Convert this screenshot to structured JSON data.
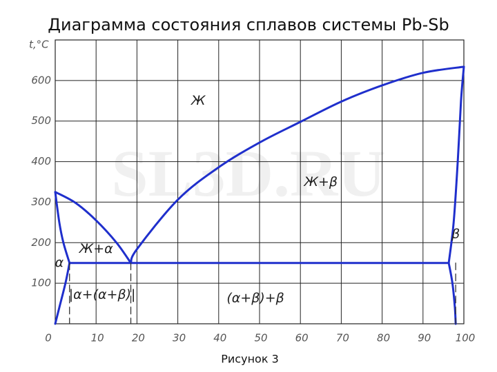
{
  "chart_data": {
    "type": "line",
    "title": "Диаграмма состояния сплавов системы Pb-Sb",
    "caption": "Рисунок 3",
    "watermark": "SL3D.RU",
    "ylabel": "t,°C",
    "xlim": [
      0,
      100
    ],
    "ylim": [
      0,
      700
    ],
    "xticks": [
      0,
      10,
      20,
      30,
      40,
      50,
      60,
      70,
      80,
      90,
      100
    ],
    "yticks": [
      100,
      200,
      300,
      400,
      500,
      600
    ],
    "grid": true,
    "series": [
      {
        "color": "#1f2fcc",
        "x": [
          0,
          5,
          10,
          15,
          18.5
        ],
        "values": [
          325,
          298,
          255,
          200,
          150
        ]
      },
      {
        "color": "#1f2fcc",
        "x": [
          18.5,
          20,
          30,
          40,
          50,
          60,
          70,
          80,
          90,
          100
        ],
        "values": [
          150,
          184,
          306,
          386,
          447,
          498,
          548,
          588,
          619,
          634
        ]
      },
      {
        "color": "#1f2fcc",
        "x": [
          0,
          1,
          2,
          3.5
        ],
        "values": [
          325,
          250,
          200,
          150
        ]
      },
      {
        "color": "#1f2fcc",
        "x": [
          3.5,
          2.5,
          1,
          0
        ],
        "values": [
          150,
          100,
          40,
          0
        ]
      },
      {
        "color": "#1f2fcc",
        "x": [
          3.5,
          96.3
        ],
        "values": [
          150,
          150
        ]
      },
      {
        "color": "#1f2fcc",
        "x": [
          96.3,
          97.5,
          98.5,
          99.3,
          100
        ],
        "values": [
          150,
          250,
          400,
          550,
          634
        ]
      },
      {
        "color": "#1f2fcc",
        "x": [
          96.3,
          97.2,
          97.8,
          98
        ],
        "values": [
          150,
          100,
          40,
          0
        ]
      },
      {
        "color": "#333333",
        "dash": true,
        "x": [
          3.5,
          3.5
        ],
        "values": [
          150,
          0
        ]
      },
      {
        "color": "#333333",
        "dash": true,
        "x": [
          18.5,
          18.5
        ],
        "values": [
          150,
          0
        ]
      },
      {
        "color": "#333333",
        "dash": true,
        "x": [
          98,
          98
        ],
        "values": [
          150,
          0
        ]
      }
    ],
    "annotations": [
      {
        "text": "Ж",
        "x": 35,
        "y": 550
      },
      {
        "text": "Ж+β",
        "x": 65,
        "y": 349
      },
      {
        "text": "Ж+α",
        "x": 10,
        "y": 184
      },
      {
        "text": "α",
        "x": 1,
        "y": 150
      },
      {
        "text": "β",
        "x": 98,
        "y": 221
      },
      {
        "text": "|α+(α+β)|",
        "x": 11.5,
        "y": 71
      },
      {
        "text": "(α+β)+β",
        "x": 49,
        "y": 63
      }
    ]
  }
}
